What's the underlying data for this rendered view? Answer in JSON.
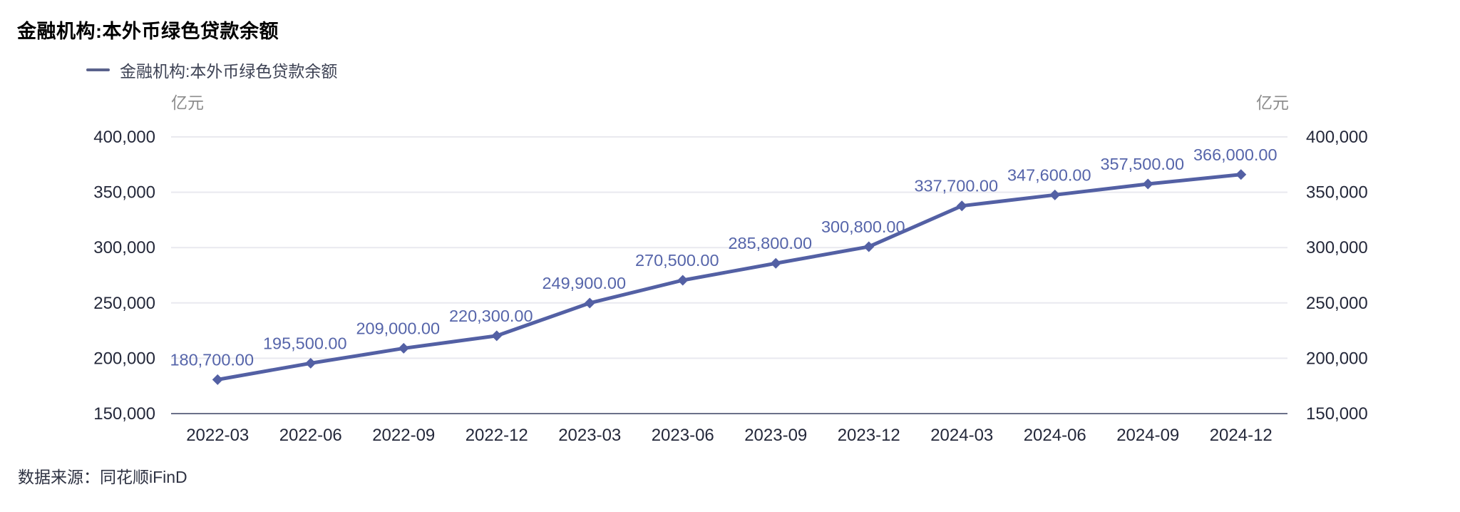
{
  "header": {
    "title": "金融机构:本外币绿色贷款余额"
  },
  "legend": {
    "items": [
      {
        "label": "金融机构:本外币绿色贷款余额"
      }
    ]
  },
  "footer": {
    "source": "数据来源：同花顺iFinD"
  },
  "chart_data": {
    "type": "line",
    "title": "金融机构:本外币绿色贷款余额",
    "unit_left": "亿元",
    "unit_right": "亿元",
    "categories": [
      "2022-03",
      "2022-06",
      "2022-09",
      "2022-12",
      "2023-03",
      "2023-06",
      "2023-09",
      "2023-12",
      "2024-03",
      "2024-06",
      "2024-09",
      "2024-12"
    ],
    "series": [
      {
        "name": "金融机构:本外币绿色贷款余额",
        "values": [
          180700,
          195500,
          209000,
          220300,
          249900,
          270500,
          285800,
          300800,
          337700,
          347600,
          357500,
          366000
        ]
      }
    ],
    "value_labels": [
      "180,700.00",
      "195,500.00",
      "209,000.00",
      "220,300.00",
      "249,900.00",
      "270,500.00",
      "285,800.00",
      "300,800.00",
      "337,700.00",
      "347,600.00",
      "357,500.00",
      "366,000.00"
    ],
    "ylim": [
      150000,
      400000
    ],
    "ytick_step": 50000,
    "yticks": [
      150000,
      200000,
      250000,
      300000,
      350000,
      400000
    ],
    "grid": true,
    "legend_position": "top-left",
    "marker": "diamond",
    "colors": {
      "line": "#5360a4",
      "marker": "#5360a4",
      "data_label": "#5665aa",
      "grid": "#e9e9ef",
      "axis": "#6b7189",
      "tick_text": "#24283a",
      "unit_text": "#8c8c8c",
      "legend_swatch": "#5a628c"
    }
  }
}
